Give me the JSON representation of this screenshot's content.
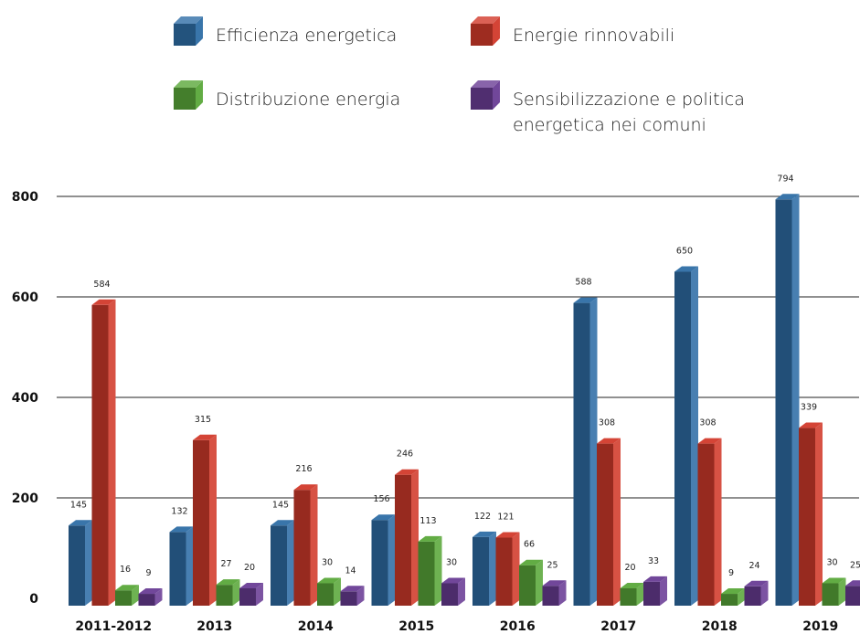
{
  "chart_data": {
    "type": "bar",
    "categories": [
      "2011-2012",
      "2013",
      "2014",
      "2015",
      "2016",
      "2017",
      "2018",
      "2019"
    ],
    "series": [
      {
        "name": "Efficienza energetica",
        "color": "#2f6ea6",
        "values": [
          145,
          132,
          145,
          156,
          122,
          588,
          650,
          794
        ]
      },
      {
        "name": "Energie rinnovabili",
        "color": "#d23a2b",
        "values": [
          584,
          315,
          216,
          246,
          121,
          308,
          308,
          339
        ]
      },
      {
        "name": "Distribuzione energia",
        "color": "#5aa83a",
        "values": [
          16,
          27,
          30,
          113,
          66,
          20,
          9,
          30
        ]
      },
      {
        "name": "Sensibilizzazione e politica energetica nei comuni",
        "name_lines": [
          "Sensibilizzazione e politica",
          "energetica nei comuni"
        ],
        "color": "#6a3d95",
        "values": [
          9,
          20,
          14,
          30,
          25,
          33,
          24,
          25
        ]
      }
    ],
    "yticks": [
      0,
      200,
      400,
      600,
      800
    ],
    "ylim": [
      0,
      800
    ],
    "grid": true,
    "legend_position": "top"
  }
}
